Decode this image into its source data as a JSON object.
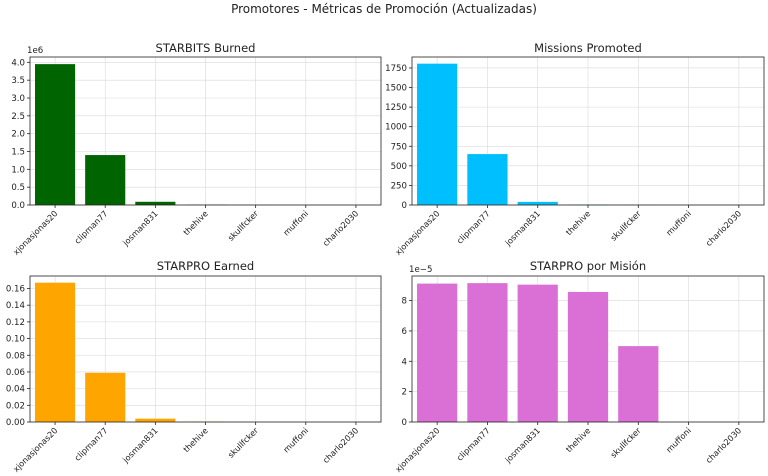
{
  "suptitle": "Promotores - Métricas de Promoción (Actualizadas)",
  "chart_data": [
    {
      "type": "bar",
      "title": "STARBITS Burned",
      "categories": [
        "xjonasjonas20",
        "clipman77",
        "josman831",
        "thehive",
        "skullfcker",
        "muffoni",
        "charlo2030"
      ],
      "values": [
        3950000,
        1400000,
        90000,
        8000,
        2000,
        1000,
        500
      ],
      "ylim": [
        0,
        4150000.0
      ],
      "yticks": [
        0,
        500000,
        1000000,
        1500000,
        2000000,
        2500000,
        3000000,
        3500000,
        4000000
      ],
      "ytick_labels": [
        "0.0",
        "0.5",
        "1.0",
        "1.5",
        "2.0",
        "2.5",
        "3.0",
        "3.5",
        "4.0"
      ],
      "offset_text": "1e6",
      "color": "#006400",
      "grid": true
    },
    {
      "type": "bar",
      "title": "Missions Promoted",
      "categories": [
        "xjonasjonas20",
        "clipman77",
        "josman831",
        "thehive",
        "skullfcker",
        "muffoni",
        "charlo2030"
      ],
      "values": [
        1805,
        650,
        40,
        5,
        2,
        1,
        1
      ],
      "ylim": [
        0,
        1890
      ],
      "yticks": [
        0,
        250,
        500,
        750,
        1000,
        1250,
        1500,
        1750
      ],
      "ytick_labels": [
        "0",
        "250",
        "500",
        "750",
        "1000",
        "1250",
        "1500",
        "1750"
      ],
      "offset_text": "",
      "color": "#00BFFF",
      "grid": true
    },
    {
      "type": "bar",
      "title": "STARPRO Earned",
      "categories": [
        "xjonasjonas20",
        "clipman77",
        "josman831",
        "thehive",
        "skullfcker",
        "muffoni",
        "charlo2030"
      ],
      "values": [
        0.167,
        0.059,
        0.004,
        0.0004,
        0.0001,
        0,
        0
      ],
      "ylim": [
        0,
        0.175
      ],
      "yticks": [
        0,
        0.02,
        0.04,
        0.06,
        0.08,
        0.1,
        0.12,
        0.14,
        0.16
      ],
      "ytick_labels": [
        "0.00",
        "0.02",
        "0.04",
        "0.06",
        "0.08",
        "0.10",
        "0.12",
        "0.14",
        "0.16"
      ],
      "offset_text": "",
      "color": "#FFA500",
      "grid": true
    },
    {
      "type": "bar",
      "title": "STARPRO por Misión",
      "categories": [
        "xjonasjonas20",
        "clipman77",
        "josman831",
        "thehive",
        "skullfcker",
        "muffoni",
        "charlo2030"
      ],
      "values": [
        9.12e-05,
        9.15e-05,
        9.05e-05,
        8.57e-05,
        5e-05,
        0,
        0
      ],
      "ylim": [
        0,
        9.62e-05
      ],
      "yticks": [
        0,
        2e-05,
        4e-05,
        6e-05,
        8e-05
      ],
      "ytick_labels": [
        "0",
        "2",
        "4",
        "6",
        "8"
      ],
      "offset_text": "1e−5",
      "color": "#DA70D6",
      "grid": true
    }
  ]
}
